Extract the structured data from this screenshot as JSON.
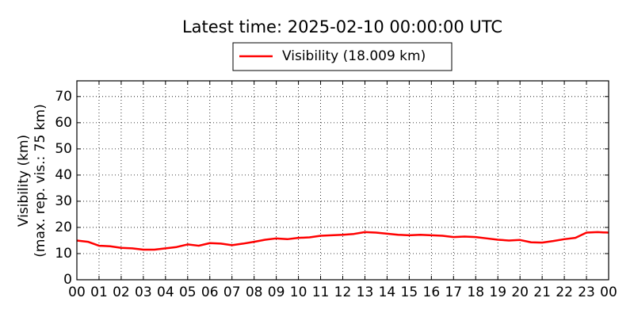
{
  "chart_data": {
    "type": "line",
    "title": "Latest time: 2025-02-10 00:00:00 UTC",
    "y_label": [
      "Visibility (km)",
      "(max. rep. vis.: 75 km)"
    ],
    "xlim": [
      0,
      24
    ],
    "ylim": [
      0,
      76
    ],
    "xticks": [
      {
        "value": 0,
        "label": "00"
      },
      {
        "value": 1,
        "label": "01"
      },
      {
        "value": 2,
        "label": "02"
      },
      {
        "value": 3,
        "label": "03"
      },
      {
        "value": 4,
        "label": "04"
      },
      {
        "value": 5,
        "label": "05"
      },
      {
        "value": 6,
        "label": "06"
      },
      {
        "value": 7,
        "label": "07"
      },
      {
        "value": 8,
        "label": "08"
      },
      {
        "value": 9,
        "label": "09"
      },
      {
        "value": 10,
        "label": "10"
      },
      {
        "value": 11,
        "label": "11"
      },
      {
        "value": 12,
        "label": "12"
      },
      {
        "value": 13,
        "label": "13"
      },
      {
        "value": 14,
        "label": "14"
      },
      {
        "value": 15,
        "label": "15"
      },
      {
        "value": 16,
        "label": "16"
      },
      {
        "value": 17,
        "label": "17"
      },
      {
        "value": 18,
        "label": "18"
      },
      {
        "value": 19,
        "label": "19"
      },
      {
        "value": 20,
        "label": "20"
      },
      {
        "value": 21,
        "label": "21"
      },
      {
        "value": 22,
        "label": "22"
      },
      {
        "value": 23,
        "label": "23"
      },
      {
        "value": 24,
        "label": "00"
      }
    ],
    "yticks": [
      0,
      10,
      20,
      30,
      40,
      50,
      60,
      70
    ],
    "grid": true,
    "legend": "top",
    "x": [
      0,
      0.5,
      1,
      1.5,
      2,
      2.5,
      3,
      3.5,
      4,
      4.5,
      5,
      5.5,
      6,
      6.5,
      7,
      7.5,
      8,
      8.5,
      9,
      9.5,
      10,
      10.5,
      11,
      11.5,
      12,
      12.5,
      13,
      13.5,
      14,
      14.5,
      15,
      15.5,
      16,
      16.5,
      17,
      17.5,
      18,
      18.5,
      19,
      19.5,
      20,
      20.5,
      21,
      21.5,
      22,
      22.5,
      23,
      23.5,
      24
    ],
    "series": [
      {
        "name": "Visibility (18.009 km)",
        "color": "#ff0000",
        "values": [
          15,
          14.5,
          13,
          12.8,
          12.2,
          12,
          11.5,
          11.5,
          12,
          12.5,
          13.5,
          13,
          14,
          13.8,
          13.2,
          13.8,
          14.5,
          15.3,
          15.8,
          15.5,
          16,
          16.2,
          16.8,
          17,
          17.2,
          17.5,
          18.2,
          18,
          17.6,
          17.2,
          17,
          17.2,
          17,
          16.8,
          16.3,
          16.5,
          16.3,
          15.8,
          15.3,
          15,
          15.2,
          14.3,
          14.2,
          14.8,
          15.5,
          16,
          18,
          18.2,
          18
        ]
      }
    ]
  }
}
